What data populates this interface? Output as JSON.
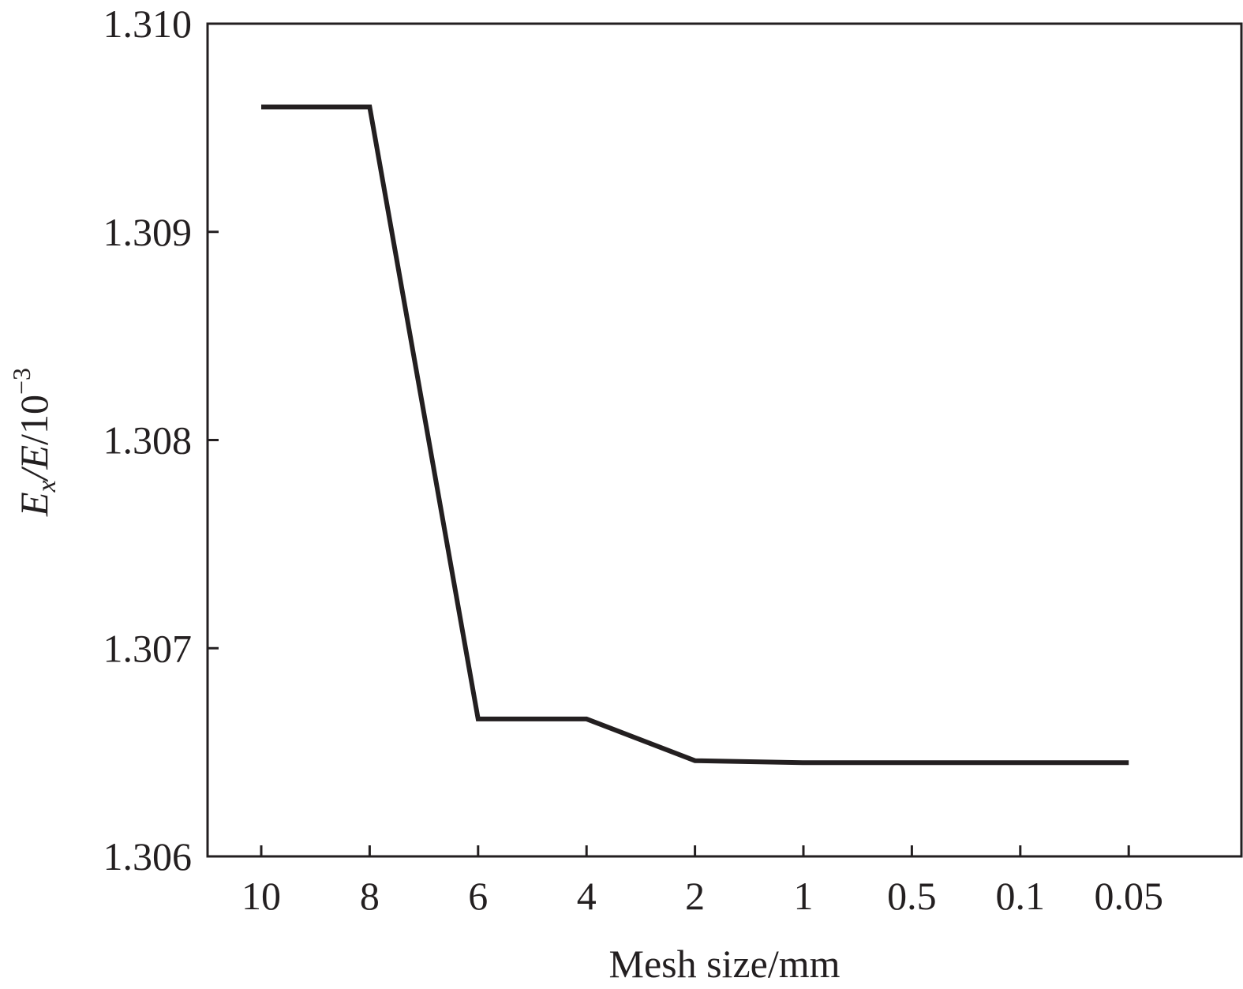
{
  "chart_data": {
    "type": "line",
    "categories": [
      "10",
      "8",
      "6",
      "4",
      "2",
      "1",
      "0.5",
      "0.1",
      "0.05"
    ],
    "series": [
      {
        "values": [
          1.3096,
          1.3096,
          1.30666,
          1.30666,
          1.30646,
          1.30645,
          1.30645,
          1.30645,
          1.30645
        ]
      }
    ],
    "ylim": [
      1.306,
      1.31
    ],
    "yticks": [
      "1.306",
      "1.307",
      "1.308",
      "1.309",
      "1.310"
    ],
    "xlabel": "Mesh size/mm",
    "ylabel": {
      "e": "E",
      "sub": "x",
      "rest_e": "/E",
      "rest": "/10",
      "sup": "−3"
    },
    "grid": false,
    "line_color": "#231f20"
  }
}
